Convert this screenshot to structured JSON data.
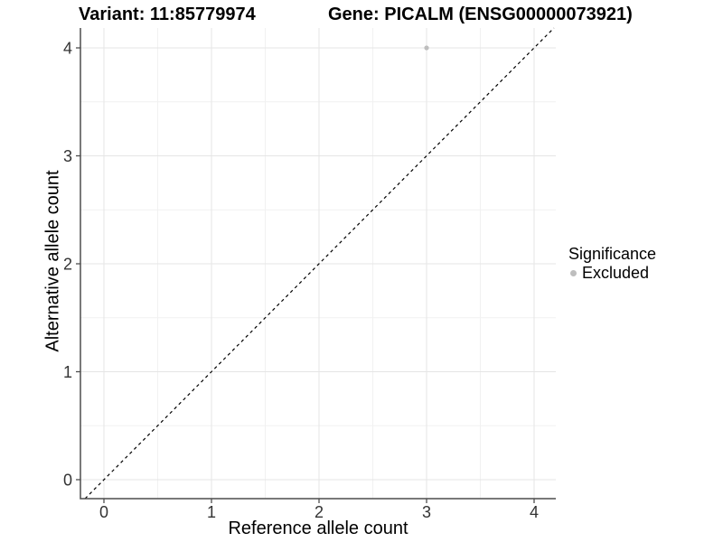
{
  "chart_data": {
    "type": "scatter",
    "titles": [
      "Variant: 11:85779974",
      "Gene: PICALM (ENSG00000073921)"
    ],
    "xlabel": "Reference allele count",
    "ylabel": "Alternative allele count",
    "xlim": [
      -0.22,
      4.2
    ],
    "ylim": [
      -0.18,
      4.18
    ],
    "x_ticks": [
      0,
      1,
      2,
      3,
      4
    ],
    "y_ticks": [
      0,
      1,
      2,
      3,
      4
    ],
    "minor_grid_x": [
      0.5,
      1.5,
      2.5,
      3.5
    ],
    "minor_grid_y": [
      0.5,
      1.5,
      2.5,
      3.5
    ],
    "grid": {
      "major": true,
      "minor": true,
      "background": "#ffffff"
    },
    "legend_position": "right",
    "legend": {
      "title": "Significance",
      "items": [
        {
          "label": "Excluded",
          "color": "#bebebe"
        }
      ]
    },
    "series": [
      {
        "name": "Excluded",
        "color": "#bebebe",
        "points": [
          {
            "x": 3,
            "y": 4
          }
        ]
      }
    ],
    "reference_line": {
      "type": "identity y=x",
      "style": "dashed",
      "color": "#000000"
    }
  },
  "colors": {
    "background": "#ffffff",
    "grid_major": "#e5e5e5",
    "grid_minor": "#f1f1f1",
    "axis_line": "#4d4d4d",
    "tick_mark": "#4d4d4d",
    "tick_label": "#333333",
    "title_text": "#000000",
    "point": "#bebebe",
    "reference_line": "#000000"
  }
}
